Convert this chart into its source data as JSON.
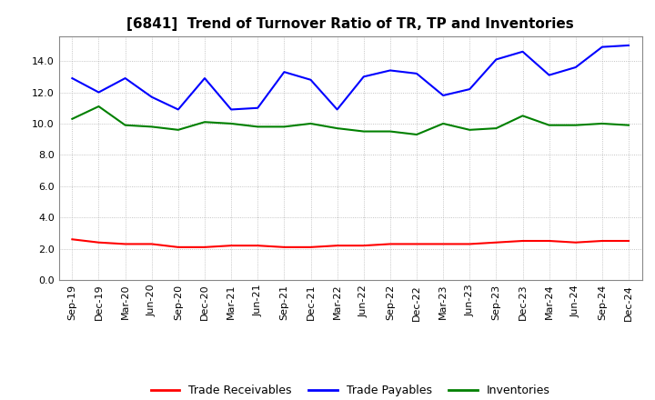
{
  "title": "[6841]  Trend of Turnover Ratio of TR, TP and Inventories",
  "x_labels": [
    "Sep-19",
    "Dec-19",
    "Mar-20",
    "Jun-20",
    "Sep-20",
    "Dec-20",
    "Mar-21",
    "Jun-21",
    "Sep-21",
    "Dec-21",
    "Mar-22",
    "Jun-22",
    "Sep-22",
    "Dec-22",
    "Mar-23",
    "Jun-23",
    "Sep-23",
    "Dec-23",
    "Mar-24",
    "Jun-24",
    "Sep-24",
    "Dec-24"
  ],
  "trade_receivables": [
    2.6,
    2.4,
    2.3,
    2.3,
    2.1,
    2.1,
    2.2,
    2.2,
    2.1,
    2.1,
    2.2,
    2.2,
    2.3,
    2.3,
    2.3,
    2.3,
    2.4,
    2.5,
    2.5,
    2.4,
    2.5,
    2.5
  ],
  "trade_payables": [
    12.9,
    12.0,
    12.9,
    11.7,
    10.9,
    12.9,
    10.9,
    11.0,
    13.3,
    12.8,
    10.9,
    13.0,
    13.4,
    13.2,
    11.8,
    12.2,
    14.1,
    14.6,
    13.1,
    13.6,
    14.9,
    15.0
  ],
  "inventories": [
    10.3,
    11.1,
    9.9,
    9.8,
    9.6,
    10.1,
    10.0,
    9.8,
    9.8,
    10.0,
    9.7,
    9.5,
    9.5,
    9.3,
    10.0,
    9.6,
    9.7,
    10.5,
    9.9,
    9.9,
    10.0,
    9.9
  ],
  "ylim": [
    0.0,
    15.6
  ],
  "yticks": [
    0.0,
    2.0,
    4.0,
    6.0,
    8.0,
    10.0,
    12.0,
    14.0
  ],
  "color_tr": "#FF0000",
  "color_tp": "#0000FF",
  "color_inv": "#008000",
  "legend_labels": [
    "Trade Receivables",
    "Trade Payables",
    "Inventories"
  ],
  "background_color": "#FFFFFF",
  "grid_color": "#AAAAAA",
  "title_fontsize": 11,
  "tick_fontsize": 8,
  "legend_fontsize": 9,
  "linewidth": 1.5
}
